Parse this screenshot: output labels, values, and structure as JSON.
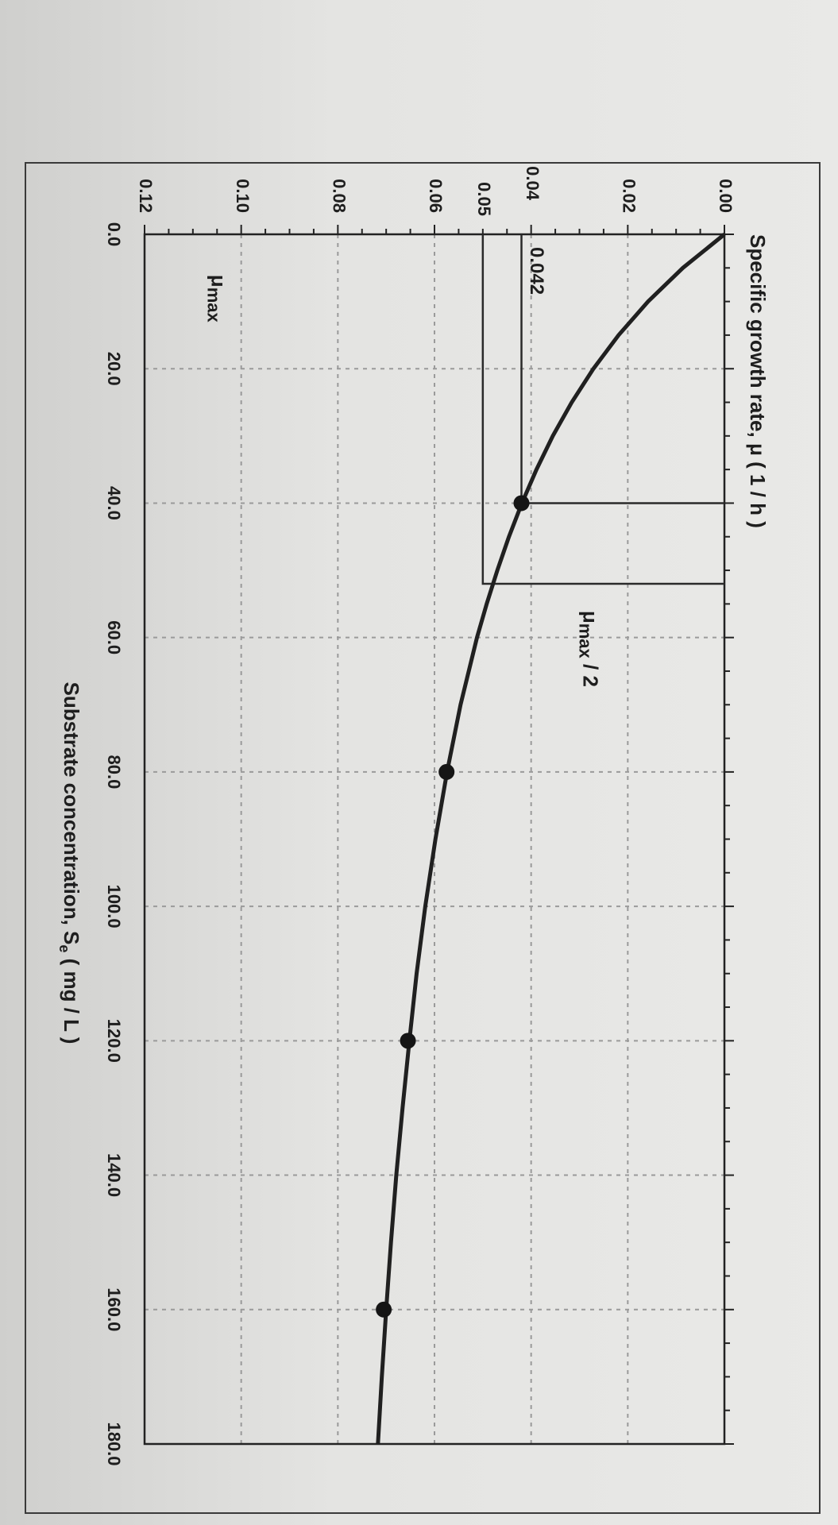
{
  "chart_data": {
    "type": "line",
    "orientation": "rotated-90-clockwise",
    "title": "",
    "ylabel": "Specific growth rate, μ ( 1 / h )",
    "xlabel_main": "Substrate concentration, S",
    "xlabel_sub": "e",
    "xlabel_unit": " ( mg / L )",
    "xlim": [
      0,
      180
    ],
    "ylim": [
      0,
      0.12
    ],
    "x_ticks": [
      "0.0",
      "20.0",
      "40.0",
      "60.0",
      "80.0",
      "100.0",
      "120.0",
      "140.0",
      "160.0",
      "180.0"
    ],
    "x_tick_values": [
      0,
      20,
      40,
      60,
      80,
      100,
      120,
      140,
      160,
      180
    ],
    "y_ticks": [
      "0.00",
      "0.02",
      "0.04",
      "0.06",
      "0.08",
      "0.10",
      "0.12"
    ],
    "y_tick_values": [
      0,
      0.02,
      0.04,
      0.06,
      0.08,
      0.1,
      0.12
    ],
    "extra_y_tick": {
      "label": "0.05",
      "value": 0.05
    },
    "grid": true,
    "series": [
      {
        "values_x": [
          0,
          5,
          10,
          15,
          20,
          25,
          30,
          35,
          40,
          45,
          50,
          55,
          60,
          70,
          80,
          90,
          100,
          110,
          120,
          130,
          140,
          150,
          160,
          170,
          180
        ],
        "values_y": [
          0,
          0.0086,
          0.0158,
          0.0219,
          0.0271,
          0.0316,
          0.0355,
          0.0389,
          0.0419,
          0.0446,
          0.047,
          0.0492,
          0.0512,
          0.0546,
          0.0574,
          0.0598,
          0.0619,
          0.0637,
          0.0652,
          0.0666,
          0.0679,
          0.069,
          0.07,
          0.0709,
          0.0717
        ]
      }
    ],
    "points": [
      {
        "x": 40,
        "y": 0.042
      },
      {
        "x": 80,
        "y": 0.0575
      },
      {
        "x": 120,
        "y": 0.0655
      },
      {
        "x": 160,
        "y": 0.0705
      }
    ],
    "annotations": [
      {
        "kind": "ref-line",
        "label": "0.042",
        "y": 0.042,
        "x": 40
      },
      {
        "kind": "ref-line",
        "label": "0.05",
        "y": 0.05,
        "x": 52
      },
      {
        "kind": "text",
        "label": "μmax",
        "sym": "μ",
        "sub": "max",
        "x": 6,
        "y": 0.105
      },
      {
        "kind": "text",
        "label": "μmax / 2",
        "sym": "μ",
        "sub": "max",
        "suffix": " / 2",
        "x": 56,
        "y": 0.028
      }
    ]
  }
}
